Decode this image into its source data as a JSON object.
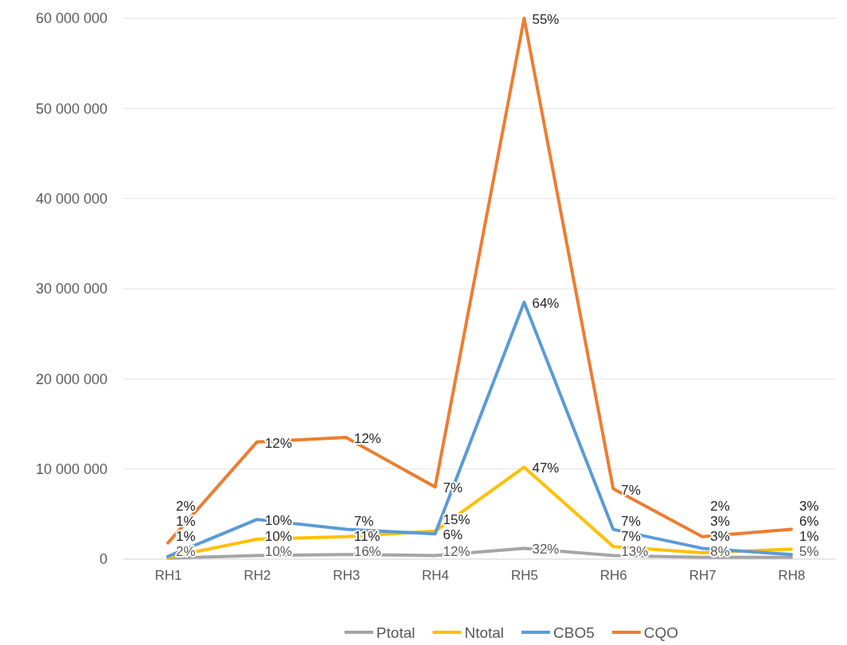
{
  "chart_data": {
    "type": "line",
    "categories": [
      "RH1",
      "RH2",
      "RH3",
      "RH4",
      "RH5",
      "RH6",
      "RH7",
      "RH8"
    ],
    "series": [
      {
        "name": "Ptotal",
        "color": "#a5a5a5",
        "values": [
          100000,
          400000,
          500000,
          400000,
          1200000,
          400000,
          200000,
          200000
        ]
      },
      {
        "name": "Ntotal",
        "color": "#ffc000",
        "values": [
          200000,
          2200000,
          2500000,
          3100000,
          10200000,
          1400000,
          700000,
          1100000
        ]
      },
      {
        "name": "CBO5",
        "color": "#5b9bd5",
        "values": [
          300000,
          4400000,
          3300000,
          2800000,
          28500000,
          3300000,
          1200000,
          500000
        ]
      },
      {
        "name": "CQO",
        "color": "#ed7d31",
        "values": [
          1800000,
          13000000,
          13500000,
          8000000,
          60000000,
          7800000,
          2500000,
          3300000
        ]
      }
    ],
    "annotations": [
      {
        "text": "2%",
        "x": "RH1",
        "y": 100000
      },
      {
        "text": "10%",
        "x": "RH2",
        "y": 400000
      },
      {
        "text": "16%",
        "x": "RH3",
        "y": 500000
      },
      {
        "text": "12%",
        "x": "RH4",
        "y": 400000
      },
      {
        "text": "32%",
        "x": "RH5",
        "y": 1200000
      },
      {
        "text": "13%",
        "x": "RH6",
        "y": 400000
      },
      {
        "text": "8%",
        "x": "RH7",
        "y": 200000
      },
      {
        "text": "5%",
        "x": "RH8",
        "y": 200000
      },
      {
        "text": "1%",
        "x": "RH1",
        "y": 200000
      },
      {
        "text": "10%",
        "x": "RH2",
        "y": 2200000
      },
      {
        "text": "11%",
        "x": "RH3",
        "y": 2500000
      },
      {
        "text": "15%",
        "x": "RH4",
        "y": 3100000
      },
      {
        "text": "47%",
        "x": "RH5",
        "y": 10200000
      },
      {
        "text": "7%",
        "x": "RH6",
        "y": 1400000
      },
      {
        "text": "3%",
        "x": "RH7",
        "y": 700000
      },
      {
        "text": "6%",
        "x": "RH8",
        "y": 1100000
      },
      {
        "text": "1%",
        "x": "RH1",
        "y": 300000
      },
      {
        "text": "10%",
        "x": "RH2",
        "y": 4400000
      },
      {
        "text": "7%",
        "x": "RH3",
        "y": 3300000
      },
      {
        "text": "6%",
        "x": "RH4",
        "y": 2800000
      },
      {
        "text": "64%",
        "x": "RH5",
        "y": 28500000
      },
      {
        "text": "7%",
        "x": "RH6",
        "y": 3300000
      },
      {
        "text": "3%",
        "x": "RH7",
        "y": 1200000
      },
      {
        "text": "1%",
        "x": "RH8",
        "y": 500000
      },
      {
        "text": "2%",
        "x": "RH1",
        "y": 1800000
      },
      {
        "text": "12%",
        "x": "RH2",
        "y": 13000000
      },
      {
        "text": "12%",
        "x": "RH3",
        "y": 13500000
      },
      {
        "text": "7%",
        "x": "RH4",
        "y": 8000000
      },
      {
        "text": "55%",
        "x": "RH5",
        "y": 60000000
      },
      {
        "text": "7%",
        "x": "RH6",
        "y": 7800000
      },
      {
        "text": "2%",
        "x": "RH7",
        "y": 2500000
      },
      {
        "text": "3%",
        "x": "RH8",
        "y": 3300000
      }
    ],
    "ylim": [
      0,
      60000000
    ],
    "yticks": [
      {
        "value": 0,
        "label": "0"
      },
      {
        "value": 10000000,
        "label": "10 000 000"
      },
      {
        "value": 20000000,
        "label": "20 000 000"
      },
      {
        "value": 30000000,
        "label": "30 000 000"
      },
      {
        "value": 40000000,
        "label": "40 000 000"
      },
      {
        "value": 50000000,
        "label": "50 000 000"
      },
      {
        "value": 60000000,
        "label": "60 000 000"
      }
    ],
    "grid": "y",
    "legend": "bottom",
    "marker": "none",
    "line_style": "solid"
  }
}
